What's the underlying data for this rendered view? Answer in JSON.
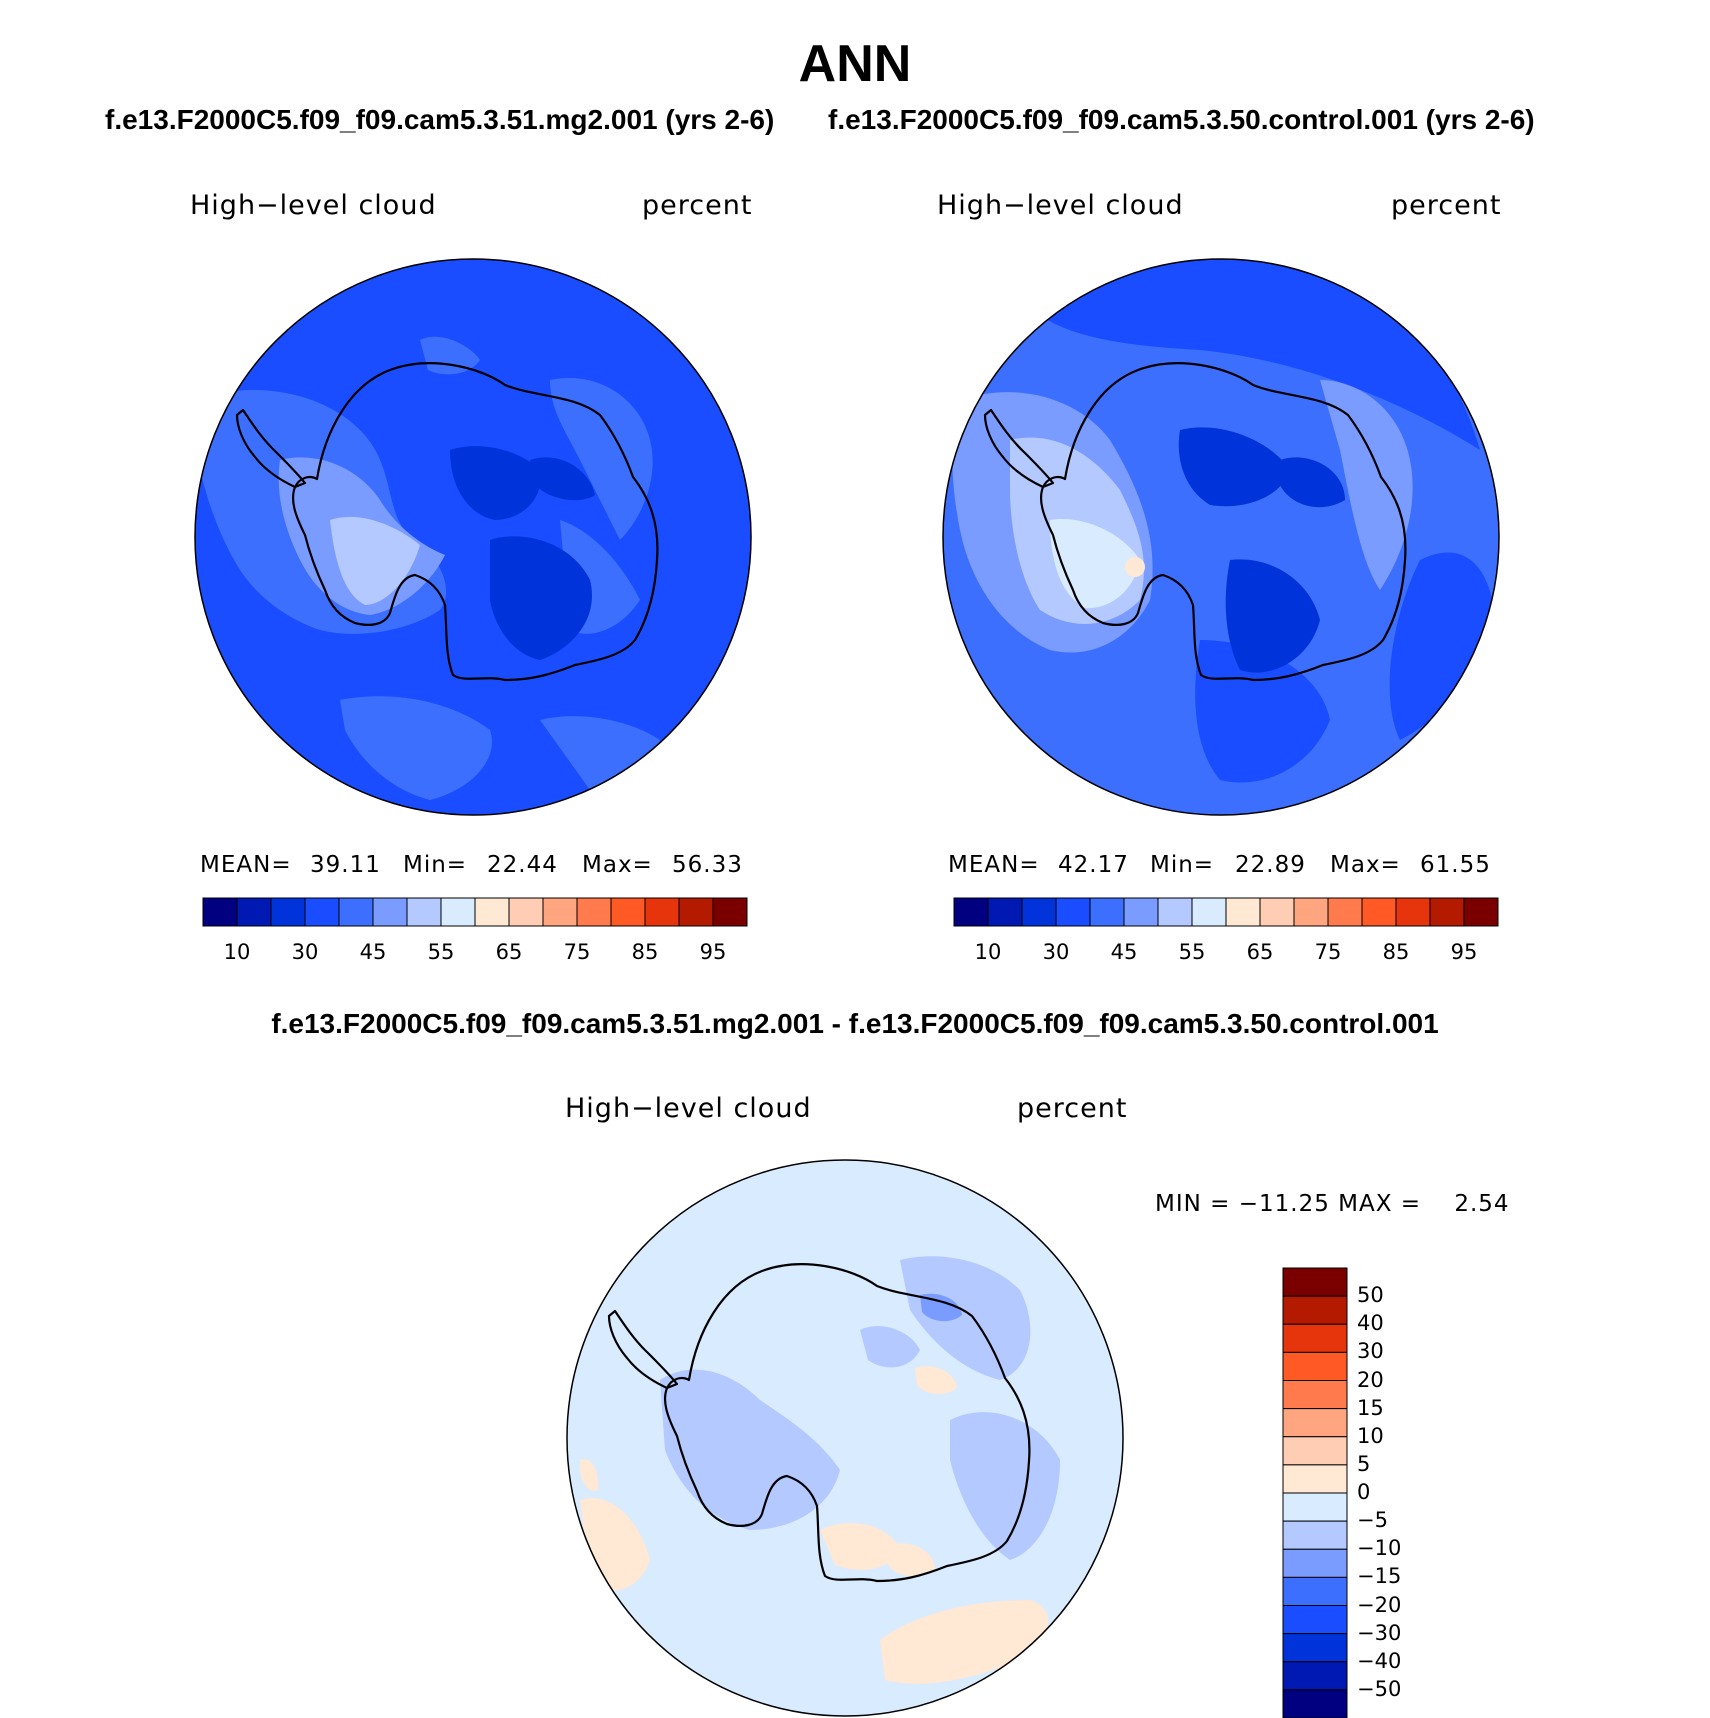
{
  "title": "ANN",
  "panels": [
    {
      "case": "f.e13.F2000C5.f09_f09.cam5.3.51.mg2.001 (yrs 2-6)",
      "variable": "High−level cloud",
      "units": "percent",
      "mean_label": "MEAN=",
      "mean": "39.11",
      "min_label": "Min=",
      "min": "22.44",
      "max_label": "Max=",
      "max": "56.33"
    },
    {
      "case": "f.e13.F2000C5.f09_f09.cam5.3.50.control.001 (yrs 2-6)",
      "variable": "High−level cloud",
      "units": "percent",
      "mean_label": "MEAN=",
      "mean": "42.17",
      "min_label": "Min=",
      "min": "22.89",
      "max_label": "Max=",
      "max": "61.55"
    }
  ],
  "difference": {
    "title": "f.e13.F2000C5.f09_f09.cam5.3.51.mg2.001 - f.e13.F2000C5.f09_f09.cam5.3.50.control.001",
    "variable": "High−level cloud",
    "units": "percent",
    "minmax_text": "MIN = −11.25 MAX =    2.54",
    "min": -11.25,
    "max": 2.54
  },
  "colorbar_abs": {
    "colors": [
      "#000080",
      "#0019b3",
      "#0033d9",
      "#1a4dff",
      "#3d6fff",
      "#7a9bff",
      "#b3c9ff",
      "#d9ebff",
      "#ffe8d4",
      "#ffcdb3",
      "#ffa680",
      "#ff7a4d",
      "#ff5a26",
      "#e6340d",
      "#b31a00",
      "#7a0000"
    ],
    "tick_labels": [
      "10",
      "30",
      "45",
      "55",
      "65",
      "75",
      "85",
      "95"
    ]
  },
  "colorbar_diff": {
    "colors": [
      "#000080",
      "#0019b3",
      "#0033d9",
      "#1a4dff",
      "#3d6fff",
      "#7a9bff",
      "#b3c9ff",
      "#d9ebff",
      "#ffe8d4",
      "#ffcdb3",
      "#ffa680",
      "#ff7a4d",
      "#ff5a26",
      "#e6340d",
      "#b31a00",
      "#7a0000"
    ],
    "tick_labels": [
      "50",
      "40",
      "30",
      "20",
      "15",
      "10",
      "5",
      "0",
      "−5",
      "−10",
      "−15",
      "−20",
      "−30",
      "−40",
      "−50"
    ]
  }
}
